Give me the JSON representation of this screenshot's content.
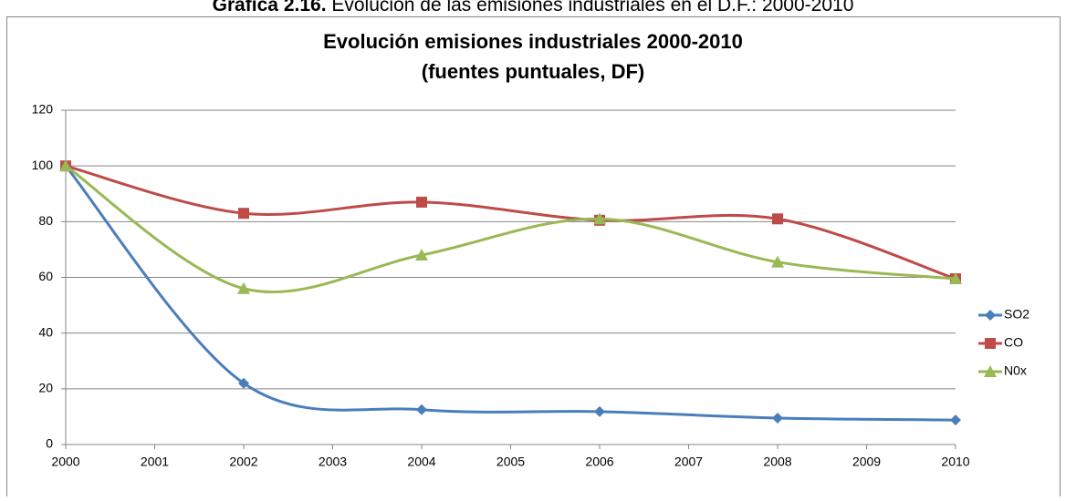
{
  "caption": {
    "label": "Gráfica 2.16.",
    "text": "Evolución de las emisiones industriales en el D.F.: 2000-2010"
  },
  "chart_data": {
    "type": "line",
    "smooth": true,
    "title": "Evolución emisiones industriales 2000-2010",
    "subtitle": "(fuentes puntuales, DF)",
    "x": [
      2000,
      2002,
      2004,
      2006,
      2008,
      2010
    ],
    "xlim": [
      2000,
      2010
    ],
    "xticks": [
      2000,
      2001,
      2002,
      2003,
      2004,
      2005,
      2006,
      2007,
      2008,
      2009,
      2010
    ],
    "ylim": [
      0,
      120
    ],
    "yticks": [
      0,
      20,
      40,
      60,
      80,
      100,
      120
    ],
    "grid": true,
    "legend": "right",
    "series": [
      {
        "name": "SO2",
        "color": "#4a7ebb",
        "marker": "diamond",
        "values": [
          100,
          22,
          12.5,
          11.8,
          9.5,
          8.8
        ]
      },
      {
        "name": "CO",
        "color": "#be4b48",
        "marker": "square",
        "values": [
          100,
          83,
          87,
          80.5,
          81,
          59.5
        ]
      },
      {
        "name": "N0x",
        "color": "#98b954",
        "marker": "triangle",
        "values": [
          100,
          56,
          68,
          81,
          65.5,
          59.5
        ]
      }
    ]
  }
}
